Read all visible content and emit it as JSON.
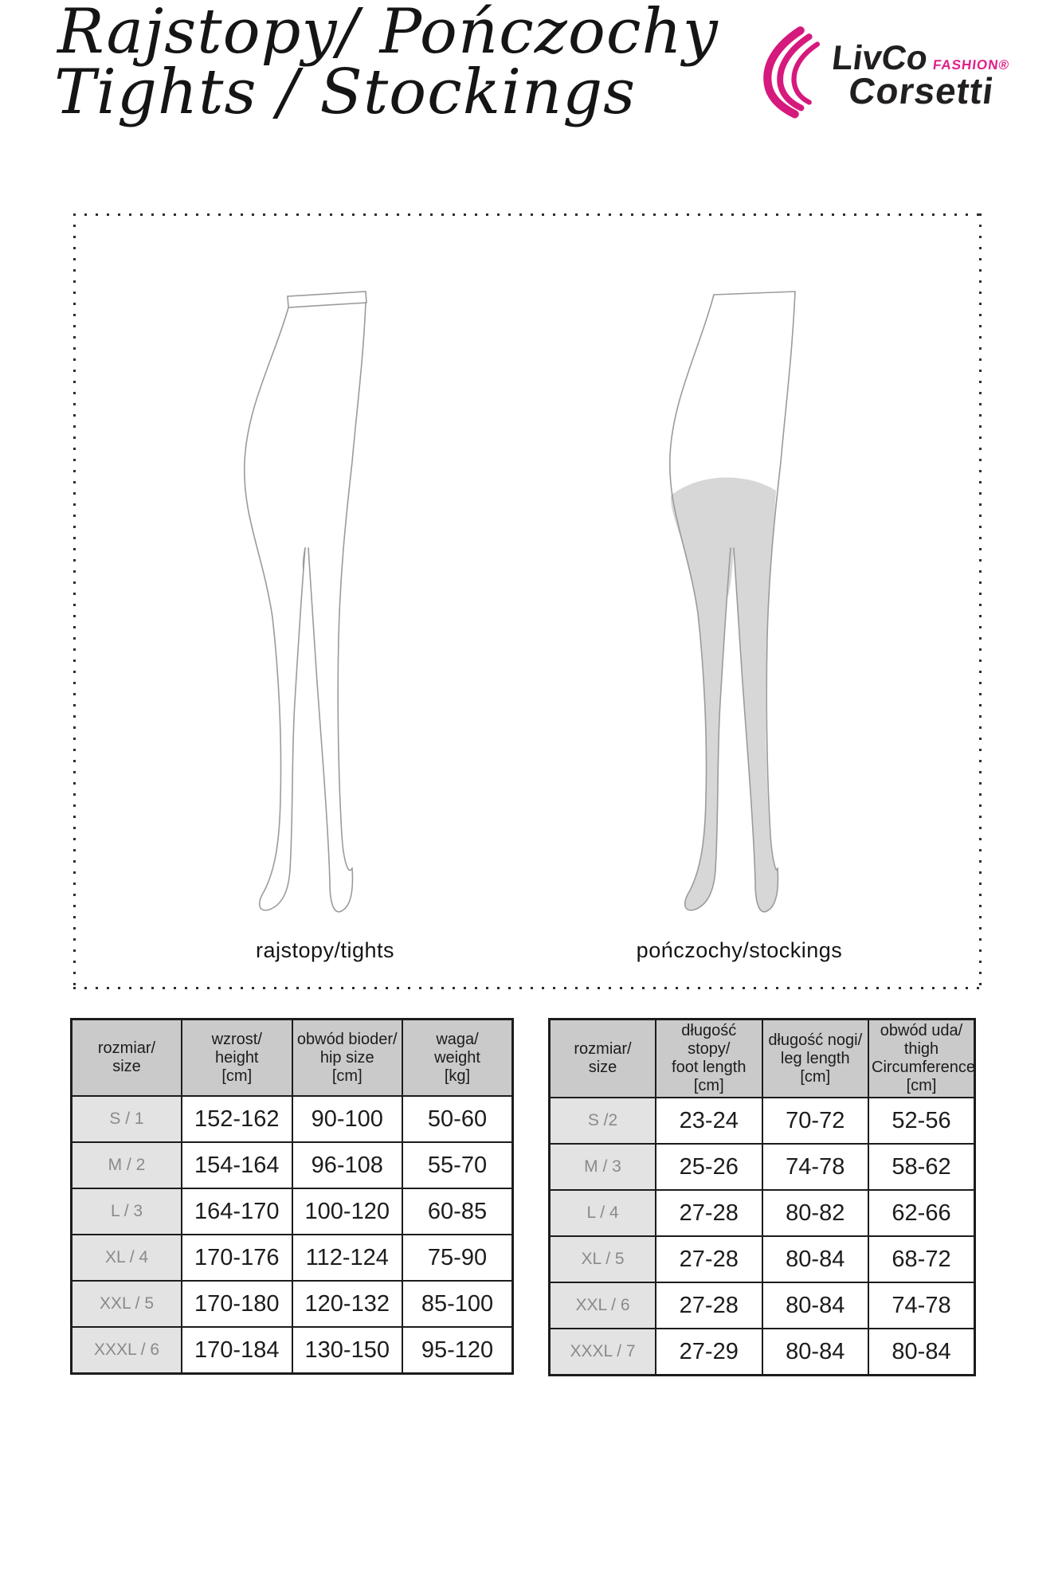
{
  "page": {
    "title_line1": "Rajstopy/ Pończochy",
    "title_line2": "Tights / Stockings"
  },
  "logo": {
    "brand_top": "LivCo",
    "brand_fashion": "FASHION®",
    "brand_bottom": "Corsetti",
    "accent_color": "#d6197d"
  },
  "figures": {
    "left_caption": "rajstopy/tights",
    "right_caption": "pończochy/stockings"
  },
  "tables": [
    {
      "name": "tights-size-table",
      "headers": [
        "rozmiar/\nsize",
        "wzrost/\nheight\n[cm]",
        "obwód bioder/\nhip size\n[cm]",
        "waga/\nweight\n[kg]"
      ],
      "rows": [
        [
          "S / 1",
          "152-162",
          "90-100",
          "50-60"
        ],
        [
          "M / 2",
          "154-164",
          "96-108",
          "55-70"
        ],
        [
          "L / 3",
          "164-170",
          "100-120",
          "60-85"
        ],
        [
          "XL / 4",
          "170-176",
          "112-124",
          "75-90"
        ],
        [
          "XXL / 5",
          "170-180",
          "120-132",
          "85-100"
        ],
        [
          "XXXL / 6",
          "170-184",
          "130-150",
          "95-120"
        ]
      ]
    },
    {
      "name": "stockings-size-table",
      "headers": [
        "rozmiar/\nsize",
        "długość stopy/\nfoot length\n[cm]",
        "długość nogi/\nleg length\n[cm]",
        "obwód uda/\nthigh\nCircumference\n[cm]"
      ],
      "rows": [
        [
          "S /2",
          "23-24",
          "70-72",
          "52-56"
        ],
        [
          "M / 3",
          "25-26",
          "74-78",
          "58-62"
        ],
        [
          "L / 4",
          "27-28",
          "80-82",
          "62-66"
        ],
        [
          "XL / 5",
          "27-28",
          "80-84",
          "68-72"
        ],
        [
          "XXL / 6",
          "27-28",
          "80-84",
          "74-78"
        ],
        [
          "XXXL / 7",
          "27-29",
          "80-84",
          "80-84"
        ]
      ]
    }
  ]
}
